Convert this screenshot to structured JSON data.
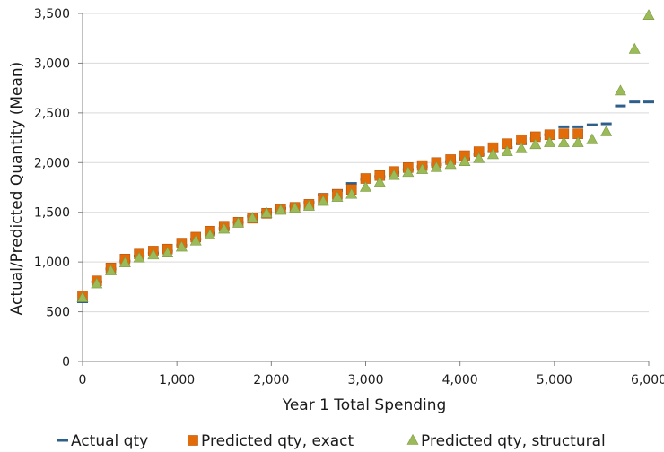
{
  "chart_data": {
    "type": "scatter",
    "xlabel": "Year 1 Total Spending",
    "ylabel": "Actual/Predicted Quantity (Mean)",
    "xlim": [
      0,
      6000
    ],
    "ylim": [
      0,
      3500
    ],
    "x_ticks": [
      "0",
      "1,000",
      "2,000",
      "3,000",
      "4,000",
      "5,000",
      "6,000"
    ],
    "y_ticks": [
      "0",
      "500",
      "1,000",
      "1,500",
      "2,000",
      "2,500",
      "3,000",
      "3,500"
    ],
    "grid": "horizontal",
    "legend_position": "bottom",
    "series": [
      {
        "name": "Actual qty",
        "marker": "dash",
        "color": "#2e5f8a",
        "x": [
          0,
          150,
          300,
          450,
          600,
          750,
          900,
          1050,
          1200,
          1350,
          1500,
          1650,
          1800,
          1950,
          2100,
          2250,
          2400,
          2550,
          2700,
          2850,
          3000,
          3150,
          3300,
          3450,
          3600,
          3750,
          3900,
          4050,
          4200,
          4350,
          4500,
          4650,
          4800,
          4950,
          5100,
          5250,
          5400,
          5550,
          5700,
          5850,
          6000
        ],
        "y": [
          600,
          800,
          930,
          1010,
          1060,
          1090,
          1110,
          1170,
          1230,
          1290,
          1340,
          1400,
          1460,
          1500,
          1540,
          1560,
          1600,
          1680,
          1720,
          1790,
          1830,
          1860,
          1900,
          1930,
          1960,
          1980,
          2010,
          2040,
          2080,
          2110,
          2150,
          2190,
          2240,
          2280,
          2360,
          2360,
          2380,
          2390,
          2570,
          2610,
          2610
        ]
      },
      {
        "name": "Predicted qty, exact",
        "marker": "square",
        "color": "#e36c09",
        "x": [
          0,
          150,
          300,
          450,
          600,
          750,
          900,
          1050,
          1200,
          1350,
          1500,
          1650,
          1800,
          1950,
          2100,
          2250,
          2400,
          2550,
          2700,
          2850,
          3000,
          3150,
          3300,
          3450,
          3600,
          3750,
          3900,
          4050,
          4200,
          4350,
          4500,
          4650,
          4800,
          4950,
          5100,
          5250
        ],
        "y": [
          660,
          810,
          940,
          1030,
          1080,
          1110,
          1130,
          1190,
          1250,
          1310,
          1360,
          1400,
          1440,
          1490,
          1530,
          1550,
          1580,
          1640,
          1680,
          1730,
          1840,
          1870,
          1910,
          1950,
          1970,
          2000,
          2030,
          2070,
          2110,
          2150,
          2190,
          2230,
          2260,
          2280,
          2290,
          2290
        ]
      },
      {
        "name": "Predicted qty, structural",
        "marker": "triangle",
        "color": "#9bbb59",
        "x": [
          0,
          150,
          300,
          450,
          600,
          750,
          900,
          1050,
          1200,
          1350,
          1500,
          1650,
          1800,
          1950,
          2100,
          2250,
          2400,
          2550,
          2700,
          2850,
          3000,
          3150,
          3300,
          3450,
          3600,
          3750,
          3900,
          4050,
          4200,
          4350,
          4500,
          4650,
          4800,
          4950,
          5100,
          5250,
          5400,
          5550,
          5700,
          5850,
          6000
        ],
        "y": [
          640,
          780,
          910,
          990,
          1040,
          1070,
          1090,
          1150,
          1210,
          1270,
          1330,
          1390,
          1440,
          1490,
          1520,
          1540,
          1560,
          1610,
          1650,
          1680,
          1750,
          1800,
          1870,
          1900,
          1930,
          1950,
          1980,
          2010,
          2040,
          2080,
          2110,
          2140,
          2180,
          2200,
          2200,
          2200,
          2230,
          2310,
          2720,
          3140,
          3480
        ]
      }
    ]
  }
}
